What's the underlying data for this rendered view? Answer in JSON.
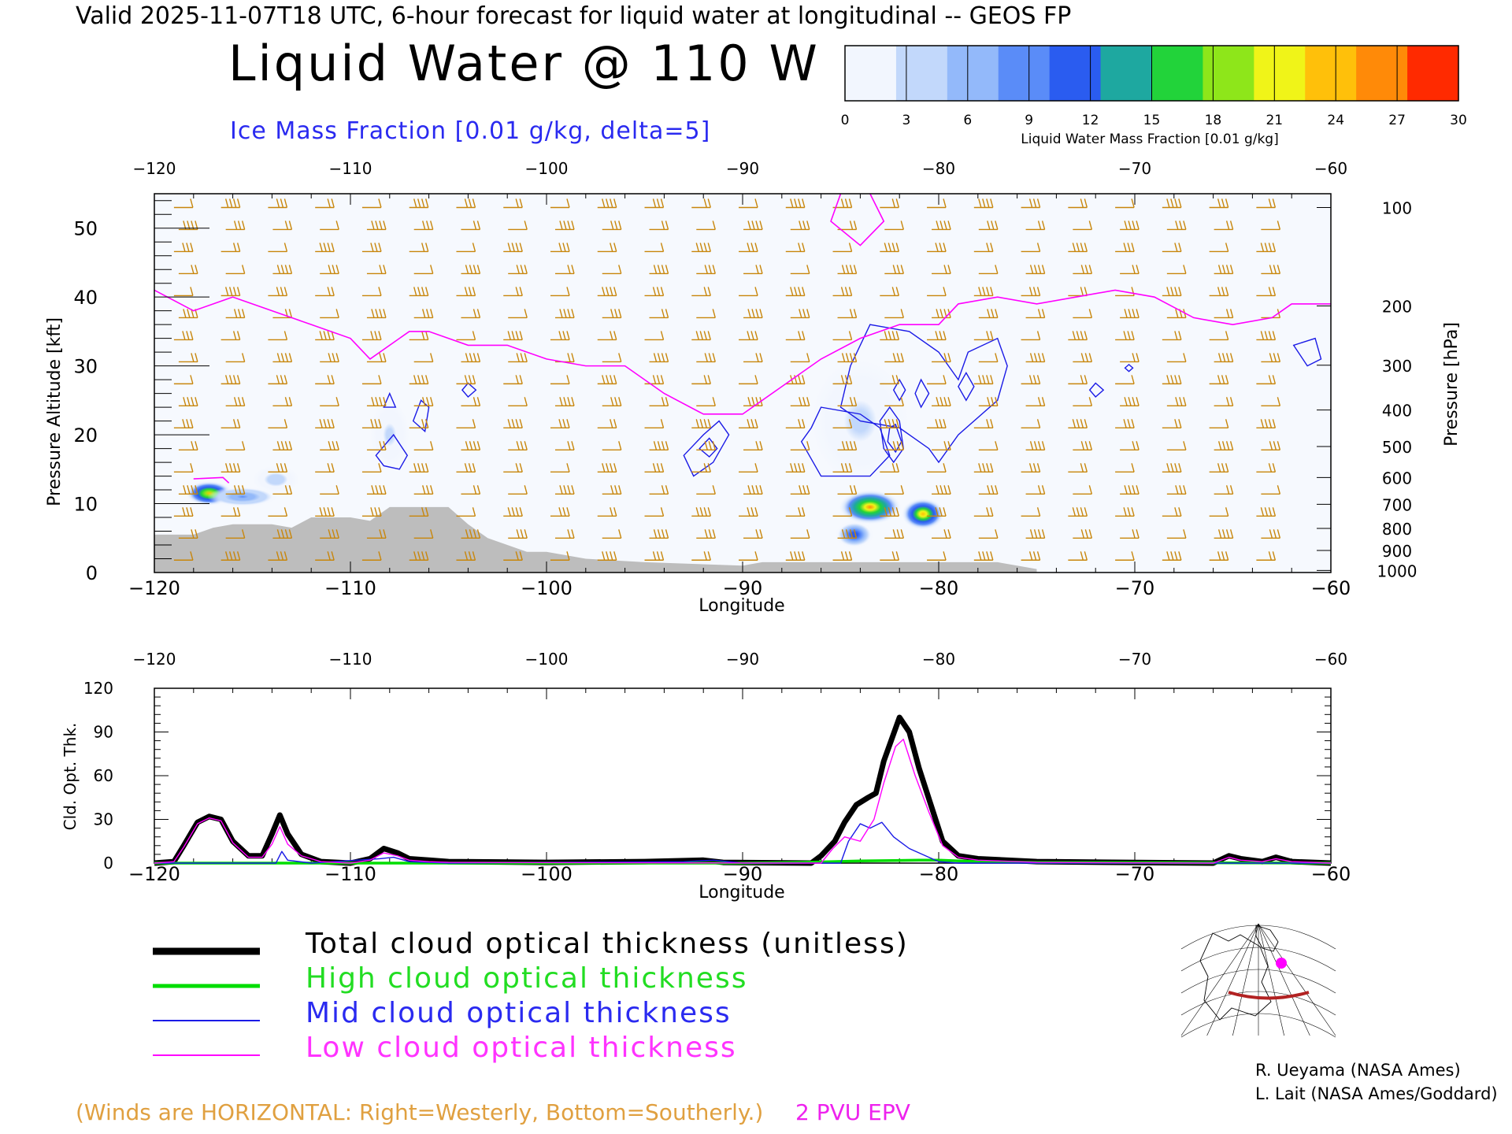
{
  "header": {
    "valid_line": "Valid 2025-11-07T18 UTC, 6-hour forecast for liquid water at longitudinal -- GEOS FP",
    "title": "Liquid Water @ 110 W",
    "subtitle": "Ice Mass Fraction [0.01 g/kg, delta=5]"
  },
  "colorbar": {
    "label": "Liquid Water Mass Fraction [0.01 g/kg]",
    "ticks": [
      "0",
      "3",
      "6",
      "9",
      "12",
      "15",
      "18",
      "21",
      "24",
      "27",
      "30"
    ],
    "colors": [
      "#f2f6fe",
      "#c2d8fb",
      "#93b9fa",
      "#5a8cf8",
      "#2a5cf0",
      "#1ea8a0",
      "#22d33a",
      "#8ee61a",
      "#f0f418",
      "#ffc00a",
      "#ff8a08",
      "#ff2a00"
    ]
  },
  "colors": {
    "wind_barb": "#c8860b",
    "epv": "#ff00ff",
    "ice_contour": "#1a1ae6",
    "terrain": "#bdbdbd",
    "total": "#000000",
    "high": "#00dd00",
    "mid": "#1a1ae6",
    "low": "#ff00ff",
    "footer_orange": "#e0a040"
  },
  "chart_data": [
    {
      "type": "heatmap",
      "xlabel": "Longitude",
      "ylabel": "Pressure Altitude [kft]",
      "y2label": "Pressure [hPa]",
      "xlim": [
        -120,
        -60
      ],
      "ylim": [
        0,
        55
      ],
      "xticks": [
        "−120",
        "−110",
        "−100",
        "−90",
        "−80",
        "−70",
        "−60"
      ],
      "yticks": [
        "0",
        "10",
        "20",
        "30",
        "40",
        "50"
      ],
      "pressure_ticks": [
        "100",
        "200",
        "300",
        "400",
        "500",
        "600",
        "700",
        "800",
        "900",
        "1000"
      ],
      "pressure_tick_altitudes_kft": [
        53,
        38.7,
        30.1,
        23.6,
        18.3,
        13.8,
        9.9,
        6.4,
        3.2,
        0.3
      ],
      "terrain_kft": [
        [
          -120,
          5.5
        ],
        [
          -119,
          5.5
        ],
        [
          -118,
          5.5
        ],
        [
          -117,
          6.5
        ],
        [
          -116,
          7
        ],
        [
          -114,
          7
        ],
        [
          -113,
          6.5
        ],
        [
          -112,
          8
        ],
        [
          -110,
          8
        ],
        [
          -109,
          7.5
        ],
        [
          -108,
          9.5
        ],
        [
          -105,
          9.5
        ],
        [
          -104,
          7
        ],
        [
          -103,
          5
        ],
        [
          -102,
          4
        ],
        [
          -101,
          3
        ],
        [
          -100,
          3
        ],
        [
          -98,
          2
        ],
        [
          -95,
          1.5
        ],
        [
          -90,
          1
        ],
        [
          -89,
          1.5
        ],
        [
          -80,
          1.5
        ],
        [
          -77,
          1.5
        ],
        [
          -76,
          1
        ],
        [
          -75,
          0.5
        ],
        [
          -75,
          0
        ]
      ],
      "epv_2pvu_kft": [
        [
          -120,
          41
        ],
        [
          -118,
          38
        ],
        [
          -116,
          40
        ],
        [
          -113,
          37
        ],
        [
          -112,
          36
        ],
        [
          -110,
          34
        ],
        [
          -109,
          31
        ],
        [
          -107,
          35
        ],
        [
          -106,
          35
        ],
        [
          -104,
          33
        ],
        [
          -102,
          33
        ],
        [
          -100,
          31
        ],
        [
          -98,
          30
        ],
        [
          -96,
          30
        ],
        [
          -94,
          26
        ],
        [
          -92,
          23
        ],
        [
          -90,
          23
        ],
        [
          -88,
          27
        ],
        [
          -86,
          31
        ],
        [
          -84,
          34
        ],
        [
          -82,
          36
        ],
        [
          -80,
          36
        ],
        [
          -79,
          39
        ],
        [
          -77,
          40
        ],
        [
          -75,
          39
        ],
        [
          -73,
          40
        ],
        [
          -71,
          41
        ],
        [
          -69,
          40
        ],
        [
          -67,
          37
        ],
        [
          -65,
          36
        ],
        [
          -63,
          37
        ],
        [
          -62,
          39
        ],
        [
          -60,
          39
        ]
      ],
      "liquid_blobs": [
        {
          "lon": -117.2,
          "alt_kft": 11.5,
          "value": 23,
          "dlon": 1.2,
          "dalt": 1.8
        },
        {
          "lon": -115.5,
          "alt_kft": 11,
          "value": 8,
          "dlon": 1.8,
          "dalt": 1.5
        },
        {
          "lon": -113.8,
          "alt_kft": 13.5,
          "value": 4,
          "dlon": 1.2,
          "dalt": 2
        },
        {
          "lon": -108,
          "alt_kft": 20,
          "value": 3,
          "dlon": 1,
          "dalt": 5
        },
        {
          "lon": -83.5,
          "alt_kft": 9.5,
          "value": 26,
          "dlon": 1.6,
          "dalt": 2.5
        },
        {
          "lon": -80.8,
          "alt_kft": 8.5,
          "value": 24,
          "dlon": 1.1,
          "dalt": 2.3
        },
        {
          "lon": -84.3,
          "alt_kft": 5.5,
          "value": 12,
          "dlon": 1,
          "dalt": 2
        },
        {
          "lon": -84,
          "alt_kft": 22,
          "value": 3,
          "dlon": 2.5,
          "dalt": 9
        }
      ]
    },
    {
      "type": "line",
      "xlabel": "Longitude",
      "ylabel": "Cld. Opt. Thk.",
      "xlim": [
        -120,
        -60
      ],
      "ylim": [
        0,
        120
      ],
      "xticks": [
        "−120",
        "−110",
        "−100",
        "−90",
        "−80",
        "−70",
        "−60"
      ],
      "yticks": [
        "0",
        "30",
        "60",
        "90",
        "120"
      ],
      "series": [
        {
          "name": "Total cloud optical thickness (unitless)",
          "points": [
            [
              -120,
              0
            ],
            [
              -119,
              1
            ],
            [
              -118.5,
              12
            ],
            [
              -117.8,
              28
            ],
            [
              -117.2,
              32
            ],
            [
              -116.6,
              30
            ],
            [
              -116,
              15
            ],
            [
              -115.2,
              5
            ],
            [
              -114.5,
              5
            ],
            [
              -114,
              20
            ],
            [
              -113.6,
              33
            ],
            [
              -113.2,
              20
            ],
            [
              -112.5,
              6
            ],
            [
              -111.5,
              1
            ],
            [
              -110,
              0
            ],
            [
              -109,
              3
            ],
            [
              -108.3,
              10
            ],
            [
              -107.6,
              7
            ],
            [
              -107,
              3
            ],
            [
              -106,
              2
            ],
            [
              -105,
              1
            ],
            [
              -100,
              0.5
            ],
            [
              -95,
              1
            ],
            [
              -92,
              2
            ],
            [
              -91,
              0.5
            ],
            [
              -86.5,
              0
            ],
            [
              -86,
              5
            ],
            [
              -85.3,
              15
            ],
            [
              -84.8,
              28
            ],
            [
              -84.2,
              40
            ],
            [
              -83.6,
              45
            ],
            [
              -83.2,
              48
            ],
            [
              -82.8,
              70
            ],
            [
              -82.4,
              85
            ],
            [
              -82,
              100
            ],
            [
              -81.5,
              90
            ],
            [
              -81,
              65
            ],
            [
              -80.4,
              40
            ],
            [
              -79.8,
              15
            ],
            [
              -79,
              5
            ],
            [
              -78,
              3
            ],
            [
              -75,
              1
            ],
            [
              -66,
              0
            ],
            [
              -65.2,
              5
            ],
            [
              -64.6,
              3
            ],
            [
              -63.5,
              1
            ],
            [
              -62.8,
              4
            ],
            [
              -62,
              1
            ],
            [
              -60,
              0
            ]
          ]
        },
        {
          "name": "High cloud optical thickness",
          "points": [
            [
              -120,
              0
            ],
            [
              -90,
              0
            ],
            [
              -87,
              0.5
            ],
            [
              -84,
              1.5
            ],
            [
              -81,
              2
            ],
            [
              -80,
              2
            ],
            [
              -78,
              1
            ],
            [
              -75,
              0.5
            ],
            [
              -60,
              0
            ]
          ]
        },
        {
          "name": "Mid cloud optical thickness",
          "points": [
            [
              -120,
              0
            ],
            [
              -113.8,
              0
            ],
            [
              -113.5,
              8
            ],
            [
              -113.2,
              2
            ],
            [
              -112,
              0
            ],
            [
              -108.5,
              3
            ],
            [
              -107.8,
              4
            ],
            [
              -107,
              1
            ],
            [
              -105,
              0
            ],
            [
              -93,
              1
            ],
            [
              -91.5,
              2
            ],
            [
              -90,
              0
            ],
            [
              -85,
              0
            ],
            [
              -84.6,
              15
            ],
            [
              -84,
              27
            ],
            [
              -83.5,
              24
            ],
            [
              -82.9,
              28
            ],
            [
              -82.3,
              18
            ],
            [
              -81.5,
              10
            ],
            [
              -80.5,
              4
            ],
            [
              -80,
              1
            ],
            [
              -79,
              0
            ],
            [
              -60,
              0
            ]
          ]
        },
        {
          "name": "Low cloud optical thickness",
          "points": [
            [
              -120,
              0
            ],
            [
              -119,
              1
            ],
            [
              -118.5,
              11
            ],
            [
              -117.8,
              27
            ],
            [
              -117.2,
              31
            ],
            [
              -116.6,
              29
            ],
            [
              -116,
              14
            ],
            [
              -115.2,
              4
            ],
            [
              -114.5,
              4
            ],
            [
              -114,
              13
            ],
            [
              -113.6,
              25
            ],
            [
              -113.2,
              13
            ],
            [
              -112.5,
              5
            ],
            [
              -111.5,
              1
            ],
            [
              -110,
              0
            ],
            [
              -109,
              2
            ],
            [
              -108.3,
              7
            ],
            [
              -107.6,
              5
            ],
            [
              -107,
              2
            ],
            [
              -106,
              1
            ],
            [
              -105,
              0.5
            ],
            [
              -100,
              0.3
            ],
            [
              -86,
              0
            ],
            [
              -85.4,
              10
            ],
            [
              -84.8,
              18
            ],
            [
              -84,
              15
            ],
            [
              -83.3,
              30
            ],
            [
              -82.8,
              55
            ],
            [
              -82.2,
              80
            ],
            [
              -81.8,
              85
            ],
            [
              -81.2,
              60
            ],
            [
              -80.5,
              35
            ],
            [
              -79.8,
              12
            ],
            [
              -79,
              4
            ],
            [
              -78,
              2
            ],
            [
              -75,
              0.5
            ],
            [
              -66,
              0
            ],
            [
              -65.2,
              4
            ],
            [
              -64.6,
              2
            ],
            [
              -63.5,
              1
            ],
            [
              -62.8,
              3
            ],
            [
              -62,
              1
            ],
            [
              -60,
              0
            ]
          ]
        }
      ]
    }
  ],
  "legend": {
    "total": "Total cloud optical thickness (unitless)",
    "high": "High cloud optical thickness",
    "mid": "Mid cloud optical thickness",
    "low": "Low cloud optical thickness"
  },
  "footer": {
    "winds_note": "(Winds are HORIZONTAL: Right=Westerly, Bottom=Southerly.)",
    "epv_label": "2 PVU EPV"
  },
  "credits": {
    "line1": "R. Ueyama (NASA Ames)",
    "line2": "L. Lait (NASA Ames/Goddard)"
  },
  "map": {
    "transect_color": "#b22222",
    "marker_color": "#ff00ff"
  }
}
